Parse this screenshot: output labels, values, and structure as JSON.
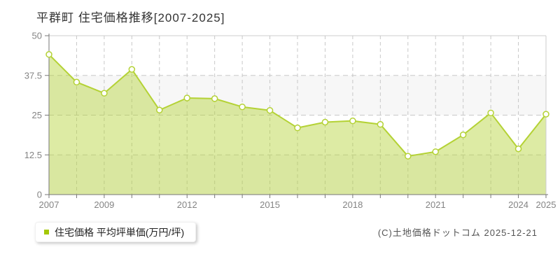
{
  "page": {
    "title": "平群町 住宅価格推移[2007-2025]"
  },
  "legend": {
    "label": "住宅価格 平均坪単価(万円/坪)",
    "marker_color": "#a4c805"
  },
  "footer": {
    "copyright": "(C)土地価格ドットコム 2025-12-21"
  },
  "colors": {
    "line": "#b4d235",
    "area_fill": "rgba(180,210,53,0.45)",
    "point_fill": "#ffffff",
    "point_stroke": "#b4d235",
    "grid": "#c8c8c8",
    "band": "#f7f7f7",
    "axis": "#777777",
    "plot_border": "#cccccc",
    "tick_label": "#848484"
  },
  "chart_data": {
    "type": "area",
    "title": "平群町 住宅価格推移[2007-2025]",
    "x": [
      2007,
      2008,
      2009,
      2010,
      2011,
      2012,
      2013,
      2014,
      2015,
      2016,
      2017,
      2018,
      2019,
      2020,
      2021,
      2022,
      2023,
      2024,
      2025
    ],
    "series": [
      {
        "name": "住宅価格 平均坪単価(万円/坪)",
        "values": [
          44.1,
          35.4,
          31.9,
          39.4,
          26.6,
          30.4,
          30.2,
          27.6,
          26.5,
          21.0,
          22.8,
          23.2,
          22.1,
          12.1,
          13.5,
          18.8,
          25.7,
          14.4,
          25.3
        ]
      }
    ],
    "ylim": [
      0,
      50
    ],
    "yticks": [
      0,
      12.5,
      25,
      37.5,
      50
    ],
    "ytick_labels": [
      "0",
      "12.5",
      "25",
      "37.5",
      "50"
    ],
    "xtick_labels": [
      "2007",
      "2009",
      "2012",
      "2015",
      "2018",
      "2021",
      "2024",
      "2025"
    ],
    "xlabel": "",
    "ylabel": "",
    "grid": true,
    "legend_position": "bottom-left"
  }
}
